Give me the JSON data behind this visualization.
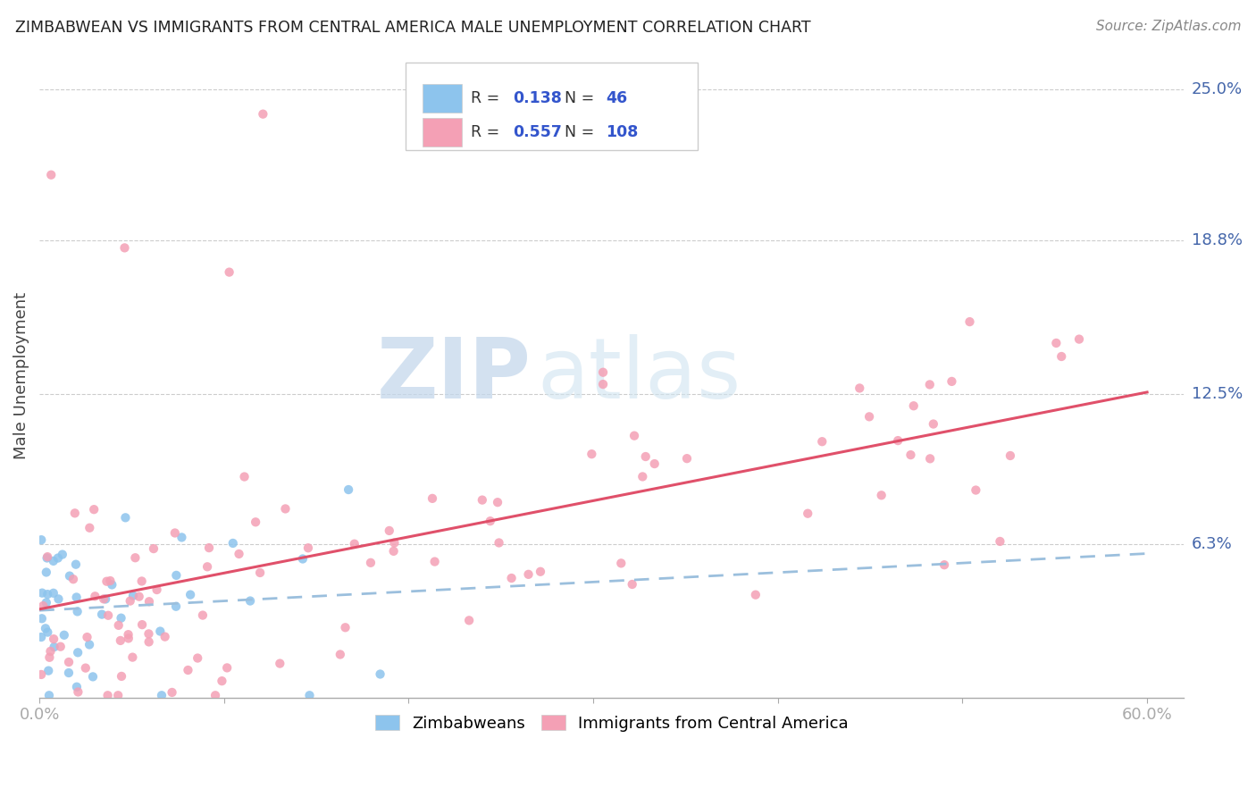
{
  "title": "ZIMBABWEAN VS IMMIGRANTS FROM CENTRAL AMERICA MALE UNEMPLOYMENT CORRELATION CHART",
  "source": "Source: ZipAtlas.com",
  "ylabel": "Male Unemployment",
  "xlim": [
    0.0,
    0.62
  ],
  "ylim": [
    0.0,
    0.265
  ],
  "xtick_vals": [
    0.0,
    0.1,
    0.2,
    0.3,
    0.4,
    0.5,
    0.6
  ],
  "xticklabels": [
    "0.0%",
    "",
    "",
    "",
    "",
    "",
    "60.0%"
  ],
  "ytick_labels_right": [
    "6.3%",
    "12.5%",
    "18.8%",
    "25.0%"
  ],
  "ytick_vals_right": [
    0.063,
    0.125,
    0.188,
    0.25
  ],
  "blue_R": "0.138",
  "blue_N": "46",
  "pink_R": "0.557",
  "pink_N": "108",
  "blue_color": "#8DC4ED",
  "pink_color": "#F4A0B5",
  "trend_blue_color": "#9BBFDD",
  "trend_pink_color": "#E0506A",
  "watermark_zip": "ZIP",
  "watermark_atlas": "atlas",
  "background_color": "#ffffff",
  "legend_label_blue": "Zimbabweans",
  "legend_label_pink": "Immigrants from Central America",
  "grid_color": "#cccccc"
}
